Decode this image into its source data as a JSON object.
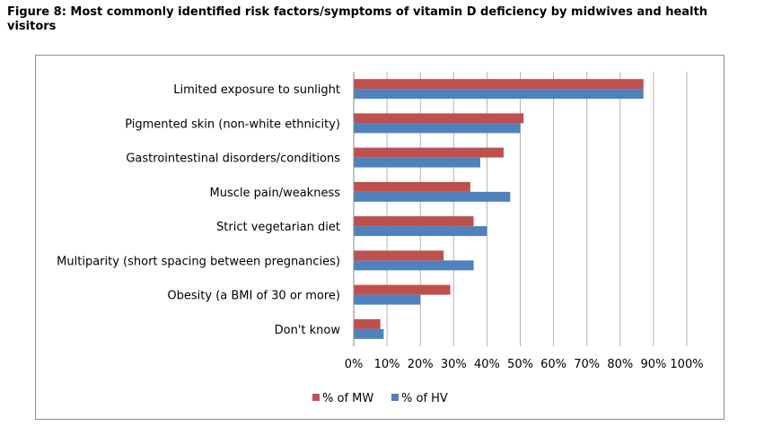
{
  "figure_title": "Figure 8:  Most commonly identified risk factors/symptoms of vitamin D deficiency by midwives and health visitors",
  "colors": {
    "mw": "#C0504D",
    "hv": "#4F81BD",
    "grid": "#b3b3b3",
    "frame": "#8c8c8c"
  },
  "chart_data": {
    "type": "bar",
    "orientation": "horizontal",
    "categories": [
      "Limited exposure to sunlight",
      "Pigmented skin (non-white ethnicity)",
      "Gastrointestinal disorders/conditions",
      "Muscle pain/weakness",
      "Strict vegetarian diet",
      "Multiparity (short spacing between pregnancies)",
      "Obesity (a BMI of 30 or more)",
      "Don't know"
    ],
    "series": [
      {
        "name": "% of MW",
        "values": [
          87,
          51,
          45,
          35,
          36,
          27,
          29,
          8
        ]
      },
      {
        "name": "% of HV",
        "values": [
          87,
          50,
          38,
          47,
          40,
          36,
          20,
          9
        ]
      }
    ],
    "xlim": [
      0,
      100
    ],
    "x_ticks": [
      "0%",
      "10%",
      "20%",
      "30%",
      "40%",
      "50%",
      "60%",
      "70%",
      "80%",
      "90%",
      "100%"
    ],
    "grid": true,
    "legend_position": "bottom"
  }
}
